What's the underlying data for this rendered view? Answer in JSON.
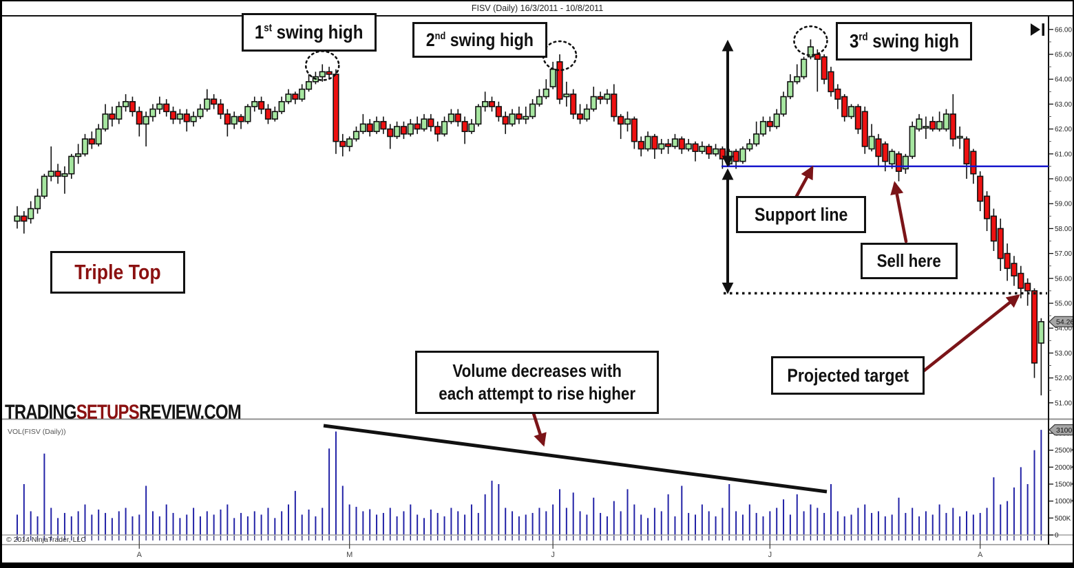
{
  "title": "FISV (Daily)  16/3/2011 - 10/8/2011",
  "toolbar": {
    "go_to_end_icon": "play-to-end"
  },
  "watermark": {
    "trading": "TRADING",
    "setups": "SETUPS",
    "review": "REVIEW.COM"
  },
  "pane_label": "VOL(FISV (Daily))",
  "copyright": "© 2014 NinjaTrader, LLC",
  "badges": {
    "price": "54.26",
    "volume": "3100K"
  },
  "annotations": {
    "swing1": {
      "num": "1",
      "suf": "st",
      "rest": " swing high"
    },
    "swing2": {
      "num": "2",
      "suf": "nd",
      "rest": " swing high"
    },
    "swing3": {
      "num": "3",
      "suf": "rd",
      "rest": " swing high"
    },
    "pattern": "Triple Top",
    "support": "Support line",
    "sell": "Sell here",
    "volume_note_line1": "Volume decreases with",
    "volume_note_line2": "each attempt to rise higher",
    "target": "Projected target"
  },
  "colors": {
    "up_candle": "#a6e6a0",
    "down_candle": "#ee1111",
    "candle_border": "#111111",
    "volume_bar": "#2121a6",
    "support_line": "#1414cc",
    "annotation_arrow": "#7b1418",
    "pattern_text": "#8b1111",
    "badge_fill": "#a6a6a6"
  },
  "chart_data": {
    "type": "candlestick",
    "title": "FISV (Daily) 16/3/2011 - 10/8/2011",
    "legend_position": "none",
    "grid": false,
    "price_axis_values": [
      66,
      65,
      64,
      63,
      62,
      61,
      60,
      59,
      58,
      57,
      56,
      55,
      54,
      53,
      52,
      51
    ],
    "price_axis_labels": [
      "66.00",
      "65.00",
      "64.00",
      "63.00",
      "62.00",
      "61.00",
      "60.00",
      "59.00",
      "58.00",
      "57.00",
      "56.00",
      "55.00",
      "54.00",
      "53.00",
      "52.00",
      "51.00"
    ],
    "volume_axis_ticks": [
      {
        "label": "3000K",
        "value": 3000
      },
      {
        "label": "2500K",
        "value": 2500
      },
      {
        "label": "2000K",
        "value": 2000
      },
      {
        "label": "1500K",
        "value": 1500
      },
      {
        "label": "1000K",
        "value": 1000
      },
      {
        "label": "500K",
        "value": 500
      },
      {
        "label": "0",
        "value": 0
      }
    ],
    "x_axis_month_labels": [
      "A",
      "M",
      "J",
      "J",
      "A"
    ],
    "x_axis_month_bar_index": [
      18,
      49,
      79,
      111,
      142
    ],
    "support_line_price": 60.5,
    "projected_target_price": 55.4,
    "last_price": 54.26,
    "last_volume_k": 3100,
    "pattern_peaks_bar_index": [
      45,
      80,
      117
    ],
    "candles_ohlc": [
      [
        58.3,
        58.9,
        58,
        58.5
      ],
      [
        58.5,
        58.7,
        57.8,
        58.3
      ],
      [
        58.4,
        59.1,
        58.2,
        58.8
      ],
      [
        58.8,
        59.6,
        58.6,
        59.3
      ],
      [
        59.3,
        60.2,
        59.2,
        60.1
      ],
      [
        60.1,
        61.3,
        59.9,
        60.3
      ],
      [
        60.3,
        60.6,
        59.8,
        60.1
      ],
      [
        60.1,
        60.5,
        59.4,
        60.2
      ],
      [
        60.2,
        61,
        60,
        60.9
      ],
      [
        60.9,
        61.4,
        60.6,
        61
      ],
      [
        61,
        61.8,
        60.9,
        61.6
      ],
      [
        61.6,
        61.9,
        61.2,
        61.4
      ],
      [
        61.4,
        62.2,
        61.3,
        62
      ],
      [
        62,
        63,
        61.9,
        62.6
      ],
      [
        62.6,
        62.9,
        62.1,
        62.4
      ],
      [
        62.4,
        63.1,
        62.2,
        62.9
      ],
      [
        62.9,
        63.4,
        62.7,
        63.1
      ],
      [
        63.1,
        63.3,
        62.5,
        62.7
      ],
      [
        62.7,
        62.9,
        61.7,
        62.2
      ],
      [
        62.2,
        62.7,
        61.3,
        62.5
      ],
      [
        62.5,
        63,
        62.3,
        62.8
      ],
      [
        62.8,
        63.3,
        62.6,
        63
      ],
      [
        63,
        63.2,
        62.5,
        62.7
      ],
      [
        62.7,
        62.9,
        62.2,
        62.4
      ],
      [
        62.4,
        62.8,
        62.2,
        62.6
      ],
      [
        62.6,
        62.8,
        61.9,
        62.3
      ],
      [
        62.3,
        62.7,
        62.1,
        62.5
      ],
      [
        62.5,
        63,
        62.4,
        62.8
      ],
      [
        62.8,
        63.6,
        62.7,
        63.2
      ],
      [
        63.2,
        63.4,
        62.8,
        63
      ],
      [
        63,
        63.2,
        62.4,
        62.6
      ],
      [
        62.6,
        62.8,
        61.7,
        62.2
      ],
      [
        62.2,
        62.7,
        62,
        62.5
      ],
      [
        62.5,
        62.6,
        62,
        62.3
      ],
      [
        62.3,
        63,
        62.2,
        62.9
      ],
      [
        62.9,
        63.3,
        62.7,
        63.1
      ],
      [
        63.1,
        63.3,
        62.6,
        62.8
      ],
      [
        62.8,
        63,
        62.2,
        62.4
      ],
      [
        62.4,
        62.9,
        62.3,
        62.7
      ],
      [
        62.7,
        63.3,
        62.6,
        63.1
      ],
      [
        63.1,
        63.6,
        63,
        63.4
      ],
      [
        63.4,
        63.5,
        63,
        63.2
      ],
      [
        63.2,
        63.8,
        63.1,
        63.6
      ],
      [
        63.6,
        64.2,
        63.5,
        63.9
      ],
      [
        63.9,
        64.3,
        63.8,
        64.1
      ],
      [
        64.1,
        64.6,
        63.9,
        64.3
      ],
      [
        64.3,
        64.5,
        64,
        64.2
      ],
      [
        64.2,
        64.4,
        61,
        61.5
      ],
      [
        61.5,
        61.8,
        60.9,
        61.3
      ],
      [
        61.3,
        61.7,
        61.1,
        61.6
      ],
      [
        61.6,
        62.1,
        61.5,
        61.9
      ],
      [
        61.9,
        62.6,
        61.8,
        62.2
      ],
      [
        62.2,
        62.4,
        61.7,
        61.9
      ],
      [
        61.9,
        62.5,
        61.8,
        62.3
      ],
      [
        62.3,
        62.5,
        61.8,
        62
      ],
      [
        62,
        62.2,
        61.2,
        61.7
      ],
      [
        61.7,
        62.3,
        61.6,
        62.1
      ],
      [
        62.1,
        62.3,
        61.6,
        61.8
      ],
      [
        61.8,
        62.4,
        61.7,
        62.2
      ],
      [
        62.2,
        62.5,
        61.8,
        62
      ],
      [
        62,
        62.6,
        61.9,
        62.4
      ],
      [
        62.4,
        62.6,
        61.9,
        62.1
      ],
      [
        62.1,
        62.3,
        61.5,
        61.8
      ],
      [
        61.8,
        62.5,
        61.7,
        62.3
      ],
      [
        62.3,
        62.8,
        62.2,
        62.6
      ],
      [
        62.6,
        62.8,
        62.1,
        62.3
      ],
      [
        62.3,
        62.5,
        61.4,
        61.9
      ],
      [
        61.9,
        62.4,
        61.8,
        62.2
      ],
      [
        62.2,
        63,
        62.1,
        62.9
      ],
      [
        62.9,
        63.5,
        62.7,
        63.1
      ],
      [
        63.1,
        63.3,
        62.7,
        62.9
      ],
      [
        62.9,
        63.1,
        62.3,
        62.5
      ],
      [
        62.5,
        62.7,
        61.8,
        62.2
      ],
      [
        62.2,
        62.8,
        62.1,
        62.6
      ],
      [
        62.6,
        62.9,
        62.2,
        62.4
      ],
      [
        62.4,
        62.9,
        62.2,
        62.5
      ],
      [
        62.5,
        63.2,
        62.4,
        63
      ],
      [
        63,
        63.6,
        62.9,
        63.3
      ],
      [
        63.3,
        64,
        63.2,
        63.6
      ],
      [
        63.7,
        64.7,
        63.6,
        64.4
      ],
      [
        64.7,
        65,
        63,
        63.2
      ],
      [
        63.3,
        63.9,
        62.9,
        63.4
      ],
      [
        63.4,
        63.6,
        62.4,
        62.6
      ],
      [
        62.6,
        63,
        62.2,
        62.4
      ],
      [
        62.4,
        63,
        62.3,
        62.8
      ],
      [
        62.8,
        63.7,
        62.7,
        63.3
      ],
      [
        63.3,
        63.5,
        63,
        63.2
      ],
      [
        63.2,
        63.6,
        63,
        63.4
      ],
      [
        63.4,
        63.8,
        62.3,
        62.5
      ],
      [
        62.5,
        62.6,
        61.6,
        62.2
      ],
      [
        62.2,
        62.7,
        61.9,
        62.4
      ],
      [
        62.4,
        62.5,
        61.2,
        61.5
      ],
      [
        61.5,
        61.7,
        60.9,
        61.2
      ],
      [
        61.2,
        61.9,
        61.1,
        61.7
      ],
      [
        61.7,
        61.8,
        60.8,
        61.2
      ],
      [
        61.2,
        61.6,
        61,
        61.4
      ],
      [
        61.4,
        61.6,
        61,
        61.3
      ],
      [
        61.3,
        61.8,
        61.2,
        61.6
      ],
      [
        61.6,
        61.7,
        61,
        61.2
      ],
      [
        61.2,
        61.6,
        61.1,
        61.4
      ],
      [
        61.4,
        61.5,
        60.7,
        61.1
      ],
      [
        61.1,
        61.5,
        61,
        61.3
      ],
      [
        61.3,
        61.4,
        60.8,
        61
      ],
      [
        61,
        61.4,
        60.9,
        61.2
      ],
      [
        61.2,
        61.3,
        60.4,
        60.8
      ],
      [
        60.6,
        61.2,
        60.5,
        61.1
      ],
      [
        61.1,
        61.2,
        60.4,
        60.7
      ],
      [
        60.7,
        61.3,
        60.6,
        61.2
      ],
      [
        61.2,
        61.6,
        61.1,
        61.4
      ],
      [
        61.4,
        62.3,
        61.3,
        61.8
      ],
      [
        61.8,
        62.5,
        61.7,
        62.3
      ],
      [
        62.3,
        62.5,
        61.9,
        62.1
      ],
      [
        62.1,
        62.8,
        62,
        62.6
      ],
      [
        62.6,
        63.5,
        62.5,
        63.3
      ],
      [
        63.3,
        64.2,
        63.2,
        63.9
      ],
      [
        63.9,
        64.6,
        63.8,
        64.1
      ],
      [
        64.1,
        64.9,
        64,
        64.8
      ],
      [
        64.9,
        65.6,
        64.8,
        65.3
      ],
      [
        65,
        65.2,
        63.5,
        64.8
      ],
      [
        64.9,
        65,
        63.8,
        64
      ],
      [
        64.3,
        64.5,
        63.3,
        63.5
      ],
      [
        63.6,
        63.8,
        62.8,
        63.2
      ],
      [
        63.3,
        63.4,
        62.3,
        62.5
      ],
      [
        62.5,
        63,
        62.4,
        62.9
      ],
      [
        62.9,
        63,
        61.8,
        62
      ],
      [
        62.7,
        62.9,
        61,
        61.3
      ],
      [
        61.2,
        62.2,
        61.1,
        61.7
      ],
      [
        61.6,
        61.8,
        60.5,
        60.9
      ],
      [
        61.4,
        61.5,
        60.3,
        60.7
      ],
      [
        60.6,
        61.2,
        60.4,
        61.1
      ],
      [
        61,
        61.1,
        59.9,
        60.3
      ],
      [
        60.4,
        61,
        60.2,
        60.9
      ],
      [
        60.9,
        62.3,
        60.8,
        62.1
      ],
      [
        62,
        62.6,
        61.9,
        62.4
      ],
      [
        62.1,
        62.5,
        61.6,
        62.1
      ],
      [
        62.3,
        62.5,
        61.9,
        62
      ],
      [
        62,
        62.7,
        61.9,
        62.3
      ],
      [
        62,
        62.8,
        61.9,
        62.6
      ],
      [
        62.6,
        63.4,
        61.3,
        61.6
      ],
      [
        61.7,
        62.1,
        61.2,
        61.7
      ],
      [
        61.6,
        61.7,
        60,
        60.6
      ],
      [
        61.1,
        61.2,
        59.8,
        60.2
      ],
      [
        60.1,
        60.3,
        58.7,
        59.1
      ],
      [
        59.3,
        59.5,
        57.9,
        58.4
      ],
      [
        58.5,
        58.8,
        57.1,
        57.5
      ],
      [
        58,
        58.4,
        56.3,
        56.8
      ],
      [
        57,
        57.4,
        55.9,
        56.4
      ],
      [
        56.6,
        56.9,
        55.7,
        56.1
      ],
      [
        56.2,
        56.5,
        55.2,
        55.6
      ],
      [
        55.8,
        56,
        54.9,
        55.5
      ],
      [
        55.5,
        55.6,
        52,
        52.6
      ],
      [
        53.4,
        54.4,
        51.3,
        54.26
      ]
    ],
    "volumes_k": [
      600,
      1500,
      700,
      550,
      2400,
      800,
      500,
      650,
      550,
      700,
      900,
      600,
      750,
      650,
      500,
      700,
      800,
      550,
      600,
      1450,
      700,
      550,
      900,
      650,
      500,
      600,
      800,
      550,
      700,
      600,
      750,
      900,
      500,
      650,
      550,
      700,
      600,
      800,
      500,
      700,
      900,
      1300,
      600,
      750,
      550,
      800,
      2550,
      3050,
      1450,
      900,
      830,
      700,
      760,
      600,
      650,
      800,
      550,
      700,
      900,
      600,
      500,
      750,
      650,
      550,
      800,
      700,
      600,
      900,
      650,
      1200,
      1600,
      1500,
      800,
      700,
      550,
      600,
      650,
      800,
      700,
      900,
      1350,
      800,
      1250,
      700,
      600,
      1100,
      650,
      550,
      1000,
      700,
      1350,
      900,
      600,
      500,
      800,
      700,
      1200,
      550,
      1450,
      650,
      600,
      900,
      700,
      550,
      800,
      1500,
      700,
      600,
      900,
      650,
      550,
      700,
      800,
      1050,
      600,
      1200,
      700,
      900,
      800,
      650,
      1500,
      700,
      550,
      600,
      800,
      900,
      650,
      700,
      550,
      600,
      1100,
      650,
      800,
      550,
      700,
      600,
      900,
      650,
      800,
      550,
      700,
      600,
      650,
      800,
      1700,
      900,
      1000,
      1400,
      2000,
      1500,
      2500,
      3100
    ]
  }
}
